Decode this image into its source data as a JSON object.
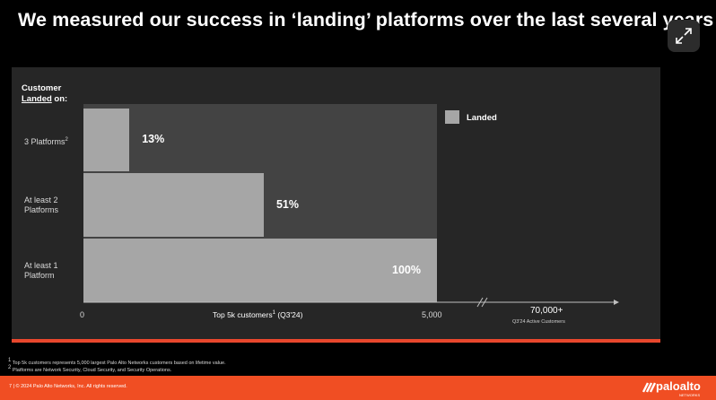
{
  "title": "We measured our success in ‘landing’ platforms over the last several years",
  "expand_button": {
    "icon": "expand-arrows-icon"
  },
  "chart_data": {
    "type": "bar",
    "orientation": "horizontal",
    "y_axis_title": {
      "line1": "Customer",
      "line2_underlined": "Landed",
      "line2_rest": " on:"
    },
    "categories": [
      {
        "lines": [
          "3 Platforms"
        ],
        "sup": "2"
      },
      {
        "lines": [
          "At least 2",
          "Platforms"
        ],
        "sup": ""
      },
      {
        "lines": [
          "At least 1",
          "Platform"
        ],
        "sup": ""
      }
    ],
    "series": [
      {
        "name": "Landed",
        "values": [
          13,
          51,
          100
        ]
      }
    ],
    "data_labels": [
      "13%",
      "51%",
      "100%"
    ],
    "xlim": [
      0,
      5000
    ],
    "x_ticks": [
      "0",
      "5,000"
    ],
    "xlabel": "Top 5k customers",
    "xlabel_sup": "1",
    "xlabel_suffix": " (Q3'24)",
    "axis_break_value": "70,000+",
    "axis_break_label": "Q3'24 Active Customers",
    "legend_position": "top-right",
    "colors": {
      "bar": "#a6a6a6",
      "plot_bg": "#434343",
      "panel_bg": "#262626"
    }
  },
  "footnotes": [
    {
      "sup": "1",
      "text": " Top 5k customers represents 5,000 largest Palo Alto Networks customers based on lifetime value."
    },
    {
      "sup": "2",
      "text": " Platforms are Network Security, Cloud Security, and Security Operations."
    }
  ],
  "footer": {
    "copyright": "7 | © 2024 Palo Alto Networks, Inc. All rights reserved.",
    "logo_text": "paloalto",
    "logo_tm": "NETWORKS",
    "accent": "#f04e23"
  }
}
